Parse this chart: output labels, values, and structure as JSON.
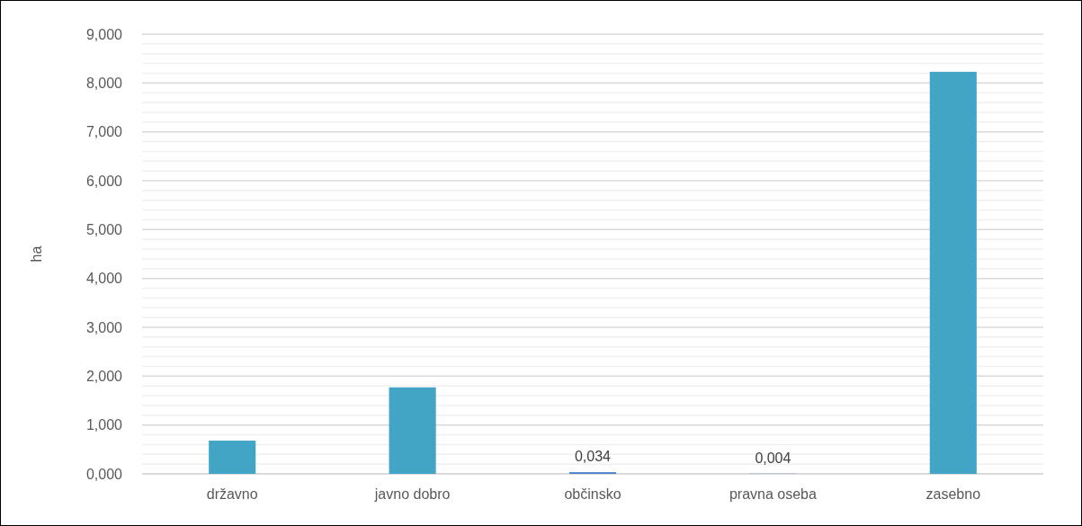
{
  "chart_data": {
    "type": "bar",
    "ylabel": "ha",
    "categories": [
      "državno",
      "javno dobro",
      "občinsko",
      "pravna oseba",
      "zasebno"
    ],
    "values": [
      0.68,
      1.77,
      0.034,
      0.004,
      8.23
    ],
    "colors": [
      "#43a5c6",
      "#43a5c6",
      "#4a7fd0",
      "#4a7fd0",
      "#43a5c6"
    ],
    "value_labels": [
      null,
      null,
      "0,034",
      "0,004",
      null
    ],
    "ylim": [
      0,
      9
    ],
    "yticks": [
      {
        "value": 0,
        "label": "0,000"
      },
      {
        "value": 0.2,
        "label": null
      },
      {
        "value": 0.4,
        "label": null
      },
      {
        "value": 0.6,
        "label": null
      },
      {
        "value": 0.8,
        "label": null
      },
      {
        "value": 1,
        "label": "1,000"
      },
      {
        "value": 1.2,
        "label": null
      },
      {
        "value": 1.4,
        "label": null
      },
      {
        "value": 1.6,
        "label": null
      },
      {
        "value": 1.8,
        "label": null
      },
      {
        "value": 2,
        "label": "2,000"
      },
      {
        "value": 2.2,
        "label": null
      },
      {
        "value": 2.4,
        "label": null
      },
      {
        "value": 2.6,
        "label": null
      },
      {
        "value": 2.8,
        "label": null
      },
      {
        "value": 3,
        "label": "3,000"
      },
      {
        "value": 3.2,
        "label": null
      },
      {
        "value": 3.4,
        "label": null
      },
      {
        "value": 3.6,
        "label": null
      },
      {
        "value": 3.8,
        "label": null
      },
      {
        "value": 4,
        "label": "4,000"
      },
      {
        "value": 4.2,
        "label": null
      },
      {
        "value": 4.4,
        "label": null
      },
      {
        "value": 4.6,
        "label": null
      },
      {
        "value": 4.8,
        "label": null
      },
      {
        "value": 5,
        "label": "5,000"
      },
      {
        "value": 5.2,
        "label": null
      },
      {
        "value": 5.4,
        "label": null
      },
      {
        "value": 5.6,
        "label": null
      },
      {
        "value": 5.8,
        "label": null
      },
      {
        "value": 6,
        "label": "6,000"
      },
      {
        "value": 6.2,
        "label": null
      },
      {
        "value": 6.4,
        "label": null
      },
      {
        "value": 6.6,
        "label": null
      },
      {
        "value": 6.8,
        "label": null
      },
      {
        "value": 7,
        "label": "7,000"
      },
      {
        "value": 7.2,
        "label": null
      },
      {
        "value": 7.4,
        "label": null
      },
      {
        "value": 7.6,
        "label": null
      },
      {
        "value": 7.8,
        "label": null
      },
      {
        "value": 8,
        "label": "8,000"
      },
      {
        "value": 8.2,
        "label": null
      },
      {
        "value": 8.4,
        "label": null
      },
      {
        "value": 8.6,
        "label": null
      },
      {
        "value": 8.8,
        "label": null
      },
      {
        "value": 9,
        "label": "9,000"
      }
    ],
    "grid": "y"
  }
}
